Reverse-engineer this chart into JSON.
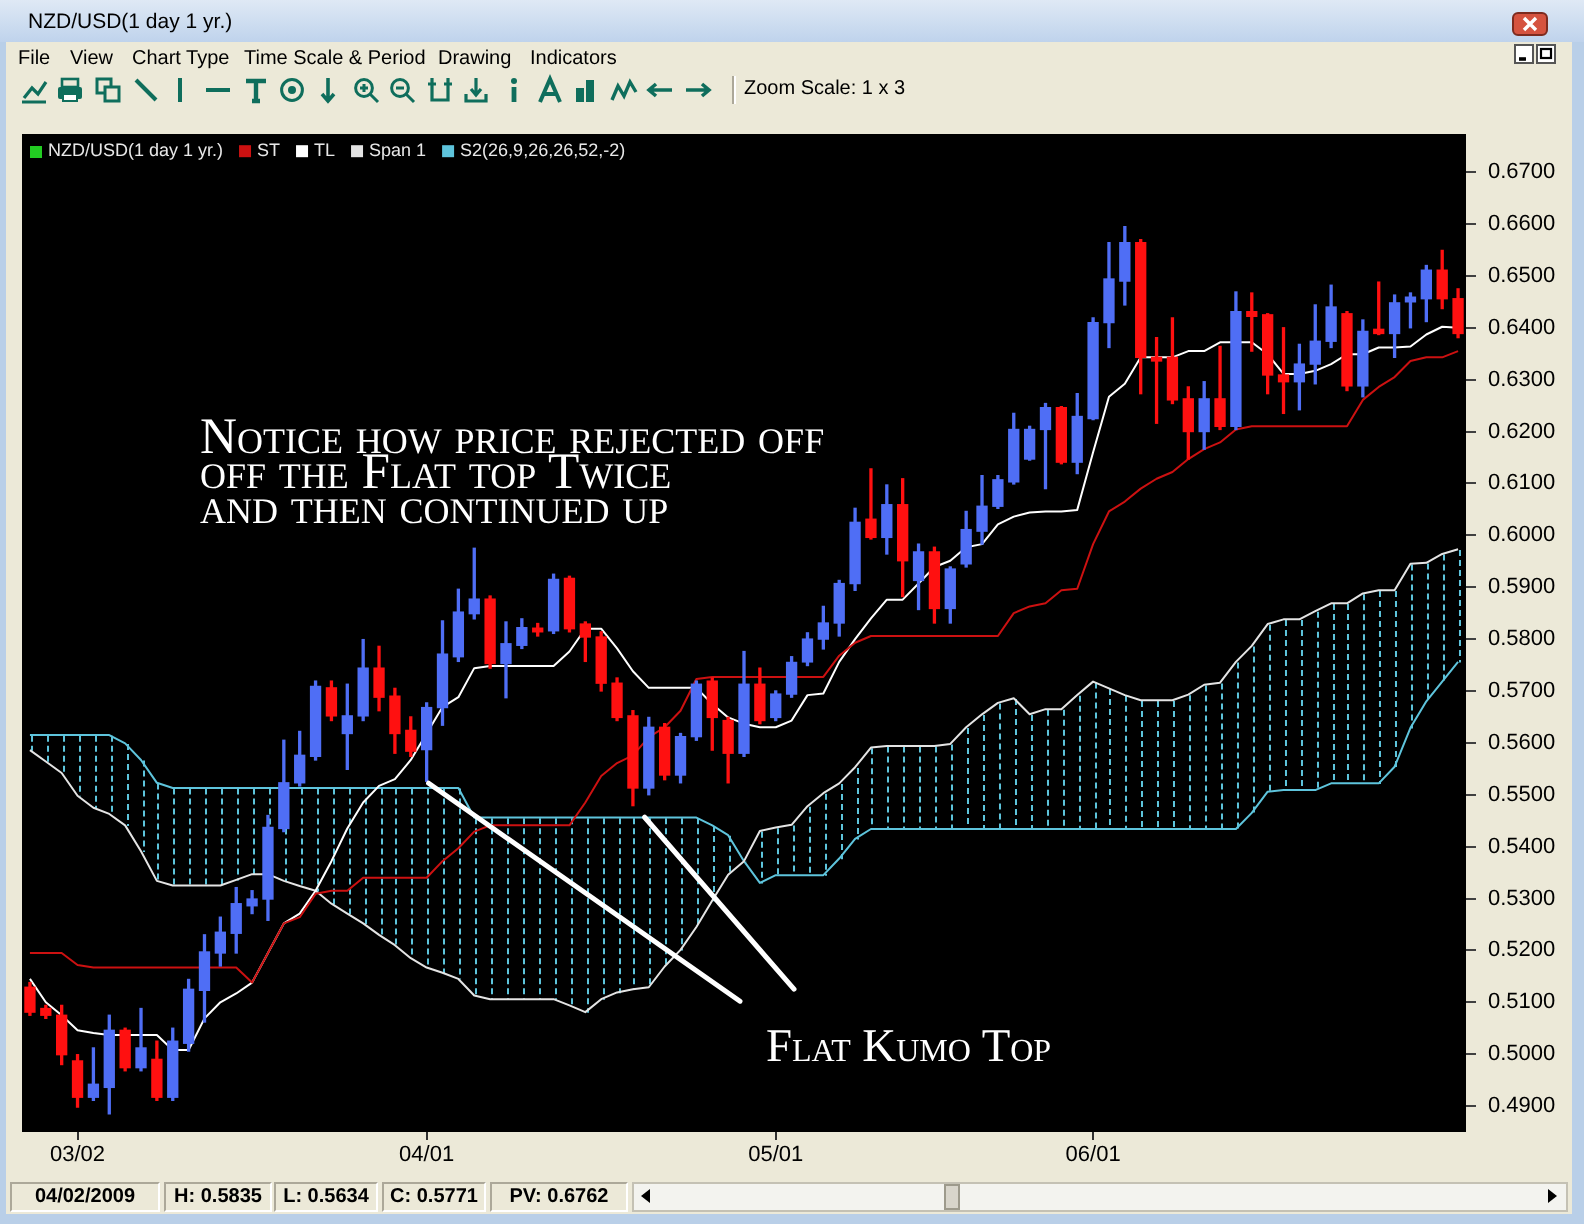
{
  "chart_data": {
    "type": "candlestick",
    "title": "NZD/USD(1 day 1 yr.)",
    "categories": [
      null,
      null,
      null,
      "03/02",
      null,
      null,
      null,
      null,
      null,
      null,
      null,
      null,
      null,
      null,
      null,
      null,
      null,
      null,
      null,
      null,
      null,
      null,
      null,
      null,
      null,
      "04/01",
      null,
      null,
      null,
      null,
      null,
      null,
      null,
      null,
      null,
      null,
      null,
      null,
      null,
      null,
      null,
      null,
      null,
      null,
      null,
      null,
      null,
      "05/01",
      null,
      null,
      null,
      null,
      null,
      null,
      null,
      null,
      null,
      null,
      null,
      null,
      null,
      null,
      null,
      null,
      null,
      null,
      null,
      "06/01",
      null,
      null,
      null,
      null,
      null,
      null,
      null,
      null,
      null,
      null,
      null,
      null,
      null,
      null,
      null,
      null,
      null,
      null,
      null,
      null,
      null,
      null,
      null
    ],
    "series": [
      {
        "colors": [
          "#ff1010",
          "#ff1010",
          "#ff1010",
          "#ff1010",
          "#4f6ef5",
          "#4f6ef5",
          "#ff1010",
          "#4f6ef5",
          "#ff1010",
          "#4f6ef5",
          "#4f6ef5",
          "#4f6ef5",
          "#4f6ef5",
          "#4f6ef5",
          "#4f6ef5",
          "#4f6ef5",
          "#4f6ef5",
          "#4f6ef5",
          "#4f6ef5",
          "#ff1010",
          "#4f6ef5",
          "#4f6ef5",
          "#ff1010",
          "#ff1010",
          "#ff1010",
          "#4f6ef5",
          "#4f6ef5",
          "#4f6ef5",
          "#4f6ef5",
          "#ff1010",
          "#4f6ef5",
          "#4f6ef5",
          "#ff1010",
          "#4f6ef5",
          "#ff1010",
          "#ff1010",
          "#ff1010",
          "#ff1010",
          "#ff1010",
          "#4f6ef5",
          "#ff1010",
          "#4f6ef5",
          "#4f6ef5",
          "#ff1010",
          "#ff1010",
          "#4f6ef5",
          "#ff1010",
          "#4f6ef5",
          "#4f6ef5",
          "#4f6ef5",
          "#4f6ef5",
          "#4f6ef5",
          "#4f6ef5",
          "#ff1010",
          "#4f6ef5",
          "#ff1010",
          "#4f6ef5",
          "#ff1010",
          "#4f6ef5",
          "#4f6ef5",
          "#4f6ef5",
          "#4f6ef5",
          "#4f6ef5",
          "#4f6ef5",
          "#4f6ef5",
          "#ff1010",
          "#4f6ef5",
          "#4f6ef5",
          "#4f6ef5",
          "#4f6ef5",
          "#ff1010",
          "#ff1010",
          "#ff1010",
          "#ff1010",
          "#4f6ef5",
          "#ff1010",
          "#4f6ef5",
          "#ff1010",
          "#ff1010",
          "#ff1010",
          "#4f6ef5",
          "#4f6ef5",
          "#4f6ef5",
          "#ff1010",
          "#4f6ef5",
          "#ff1010",
          "#4f6ef5",
          "#4f6ef5",
          "#4f6ef5",
          "#ff1010",
          "#ff1010"
        ],
        "ohlc": [
          [
            0.5129,
            0.5138,
            0.5075,
            0.5081
          ],
          [
            0.5088,
            0.5094,
            0.5069,
            0.5075
          ],
          [
            0.5075,
            0.5094,
            0.498,
            0.4999
          ],
          [
            0.4987,
            0.4999,
            0.4898,
            0.4917
          ],
          [
            0.4917,
            0.5012,
            0.4911,
            0.4942
          ],
          [
            0.4936,
            0.5075,
            0.4885,
            0.5046
          ],
          [
            0.5046,
            0.505,
            0.4968,
            0.4974
          ],
          [
            0.4974,
            0.5088,
            0.4968,
            0.5012
          ],
          [
            0.499,
            0.5025,
            0.4911,
            0.4917
          ],
          [
            0.4917,
            0.505,
            0.4911,
            0.5025
          ],
          [
            0.5021,
            0.5144,
            0.5006,
            0.5125
          ],
          [
            0.5123,
            0.523,
            0.5062,
            0.5197
          ],
          [
            0.5195,
            0.5264,
            0.517,
            0.5235
          ],
          [
            0.5233,
            0.5321,
            0.5195,
            0.529
          ],
          [
            0.5286,
            0.5315,
            0.5271,
            0.5299
          ],
          [
            0.5299,
            0.546,
            0.5258,
            0.5437
          ],
          [
            0.5435,
            0.5605,
            0.5429,
            0.5523
          ],
          [
            0.5523,
            0.5622,
            0.5517,
            0.5576
          ],
          [
            0.5574,
            0.5719,
            0.5567,
            0.5709
          ],
          [
            0.5706,
            0.5719,
            0.5643,
            0.5652
          ],
          [
            0.5618,
            0.5713,
            0.5549,
            0.5652
          ],
          [
            0.5652,
            0.5799,
            0.5643,
            0.5744
          ],
          [
            0.5744,
            0.5786,
            0.5662,
            0.5688
          ],
          [
            0.569,
            0.5705,
            0.558,
            0.5618
          ],
          [
            0.5624,
            0.565,
            0.5574,
            0.5584
          ],
          [
            0.5587,
            0.5677,
            0.5526,
            0.5668
          ],
          [
            0.5668,
            0.5835,
            0.5634,
            0.5771
          ],
          [
            0.5766,
            0.5896,
            0.5757,
            0.5852
          ],
          [
            0.5849,
            0.5975,
            0.5839,
            0.5877
          ],
          [
            0.5877,
            0.5883,
            0.5744,
            0.5753
          ],
          [
            0.5753,
            0.5833,
            0.5687,
            0.5791
          ],
          [
            0.5788,
            0.5839,
            0.5782,
            0.5822
          ],
          [
            0.5821,
            0.583,
            0.5806,
            0.5814
          ],
          [
            0.5816,
            0.5925,
            0.5811,
            0.5915
          ],
          [
            0.5917,
            0.5921,
            0.5814,
            0.582
          ],
          [
            0.5829,
            0.5833,
            0.5757,
            0.5804
          ],
          [
            0.5804,
            0.5814,
            0.57,
            0.5715
          ],
          [
            0.5715,
            0.5725,
            0.5643,
            0.5649
          ],
          [
            0.5652,
            0.5662,
            0.5479,
            0.5513
          ],
          [
            0.5513,
            0.5649,
            0.55,
            0.563
          ],
          [
            0.563,
            0.5637,
            0.5529,
            0.5538
          ],
          [
            0.5538,
            0.5618,
            0.5523,
            0.5612
          ],
          [
            0.5612,
            0.5719,
            0.5605,
            0.5713
          ],
          [
            0.5719,
            0.5725,
            0.5586,
            0.5649
          ],
          [
            0.5643,
            0.5649,
            0.5523,
            0.558
          ],
          [
            0.558,
            0.5776,
            0.5574,
            0.5713
          ],
          [
            0.5713,
            0.5744,
            0.5637,
            0.5643
          ],
          [
            0.5649,
            0.57,
            0.5643,
            0.5694
          ],
          [
            0.5694,
            0.5766,
            0.5688,
            0.5755
          ],
          [
            0.5756,
            0.5812,
            0.5749,
            0.58
          ],
          [
            0.58,
            0.5863,
            0.5781,
            0.5831
          ],
          [
            0.5831,
            0.5913,
            0.5806,
            0.5907
          ],
          [
            0.5907,
            0.6052,
            0.5894,
            0.6025
          ],
          [
            0.6031,
            0.6128,
            0.5993,
            0.5996
          ],
          [
            0.5996,
            0.6097,
            0.5964,
            0.6059
          ],
          [
            0.6059,
            0.6109,
            0.5882,
            0.5951
          ],
          [
            0.5913,
            0.5983,
            0.5857,
            0.5968
          ],
          [
            0.5968,
            0.5977,
            0.5831,
            0.5859
          ],
          [
            0.5859,
            0.5939,
            0.5831,
            0.5935
          ],
          [
            0.5945,
            0.6046,
            0.5939,
            0.6011
          ],
          [
            0.6008,
            0.6115,
            0.5983,
            0.6056
          ],
          [
            0.6056,
            0.6115,
            0.6052,
            0.6107
          ],
          [
            0.6103,
            0.6235,
            0.6099,
            0.6204
          ],
          [
            0.6147,
            0.621,
            0.6145,
            0.6204
          ],
          [
            0.6204,
            0.6254,
            0.609,
            0.6246
          ],
          [
            0.6246,
            0.6248,
            0.6138,
            0.6141
          ],
          [
            0.6141,
            0.6273,
            0.6119,
            0.6229
          ],
          [
            0.6225,
            0.6419,
            0.6223,
            0.641
          ],
          [
            0.641,
            0.6564,
            0.6362,
            0.6494
          ],
          [
            0.649,
            0.6595,
            0.6444,
            0.6564
          ],
          [
            0.6564,
            0.657,
            0.6273,
            0.6343
          ],
          [
            0.6343,
            0.6381,
            0.6216,
            0.6336
          ],
          [
            0.6343,
            0.6419,
            0.6254,
            0.6261
          ],
          [
            0.6263,
            0.6286,
            0.6147,
            0.62
          ],
          [
            0.62,
            0.6296,
            0.6166,
            0.6263
          ],
          [
            0.6263,
            0.6364,
            0.6204,
            0.621
          ],
          [
            0.621,
            0.6469,
            0.6204,
            0.6431
          ],
          [
            0.6431,
            0.6467,
            0.6355,
            0.6422
          ],
          [
            0.6425,
            0.6427,
            0.6273,
            0.6309
          ],
          [
            0.6309,
            0.64,
            0.6235,
            0.6296
          ],
          [
            0.6296,
            0.6368,
            0.6242,
            0.633
          ],
          [
            0.633,
            0.6444,
            0.6292,
            0.6374
          ],
          [
            0.6374,
            0.6482,
            0.6362,
            0.644
          ],
          [
            0.6427,
            0.6431,
            0.6279,
            0.6288
          ],
          [
            0.6288,
            0.6415,
            0.6267,
            0.6393
          ],
          [
            0.6397,
            0.6488,
            0.6387,
            0.6389
          ],
          [
            0.6389,
            0.6463,
            0.6343,
            0.6448
          ],
          [
            0.645,
            0.6467,
            0.64,
            0.6459
          ],
          [
            0.6456,
            0.652,
            0.6412,
            0.6511
          ],
          [
            0.6511,
            0.6549,
            0.6437,
            0.6456
          ],
          [
            0.6456,
            0.6475,
            0.6381,
            0.6389
          ]
        ]
      },
      {
        "type": "line",
        "name": "ST",
        "color": "#cc1111",
        "values": [
          0.5195,
          0.5195,
          0.5195,
          0.5172,
          0.5167,
          0.5167,
          0.5167,
          0.5167,
          0.5167,
          0.5167,
          0.5167,
          0.5167,
          0.5167,
          0.5167,
          0.5138,
          0.5195,
          0.5252,
          0.5264,
          0.5309,
          0.5315,
          0.5315,
          0.534,
          0.534,
          0.534,
          0.534,
          0.534,
          0.5372,
          0.5397,
          0.5429,
          0.5441,
          0.5441,
          0.5441,
          0.5441,
          0.5441,
          0.5441,
          0.5485,
          0.5536,
          0.5561,
          0.5576,
          0.5611,
          0.563,
          0.5662,
          0.5723,
          0.5727,
          0.5727,
          0.5727,
          0.5727,
          0.5727,
          0.5727,
          0.5727,
          0.5727,
          0.5768,
          0.5793,
          0.5806,
          0.5806,
          0.5806,
          0.5806,
          0.5806,
          0.5806,
          0.5806,
          0.5806,
          0.5806,
          0.585,
          0.5863,
          0.5869,
          0.5894,
          0.5897,
          0.5983,
          0.6046,
          0.6065,
          0.609,
          0.6109,
          0.6122,
          0.6147,
          0.6166,
          0.6179,
          0.6204,
          0.621,
          0.621,
          0.621,
          0.621,
          0.621,
          0.621,
          0.621,
          0.6261,
          0.6286,
          0.6305,
          0.6336,
          0.6343,
          0.6343,
          0.6355
        ]
      },
      {
        "type": "line",
        "name": "TL",
        "color": "#ffffff",
        "values": [
          0.5145,
          0.51,
          0.5075,
          0.5046,
          0.5041,
          0.5037,
          0.5037,
          0.5037,
          0.5037,
          0.5008,
          0.5008,
          0.5069,
          0.51,
          0.5117,
          0.5138,
          0.5195,
          0.5252,
          0.5271,
          0.5315,
          0.5372,
          0.5435,
          0.5485,
          0.5517,
          0.553,
          0.5567,
          null,
          0.5669,
          0.5688,
          0.5744,
          0.5748,
          0.5748,
          0.5748,
          0.5748,
          0.5748,
          0.5776,
          0.582,
          0.582,
          0.5782,
          0.5738,
          0.5706,
          0.5706,
          0.5706,
          0.5706,
          0.5675,
          0.5649,
          0.5637,
          0.563,
          0.563,
          0.5643,
          0.5692,
          0.5695,
          0.5756,
          0.58,
          0.584,
          0.5876,
          0.5876,
          0.5907,
          0.5939,
          0.5951,
          0.5977,
          0.5983,
          0.6021,
          0.6036,
          0.6044,
          0.6046,
          0.6046,
          0.6049,
          0.616,
          0.6267,
          0.6292,
          0.6343,
          0.6343,
          0.6343,
          0.6355,
          0.6355,
          0.6372,
          0.6372,
          0.6372,
          0.6349,
          0.6311,
          0.6311,
          0.6317,
          0.633,
          0.6349,
          0.6349,
          0.6362,
          0.6362,
          0.6364,
          0.6387,
          0.6402,
          0.64
        ]
      },
      {
        "type": "line",
        "name": "Span 1",
        "color": "#e4e4e4",
        "values": [
          0.5586,
          0.5564,
          0.5542,
          0.5498,
          0.5475,
          0.5463,
          0.5441,
          0.5391,
          0.5334,
          0.5325,
          0.5325,
          0.5325,
          0.5325,
          0.5336,
          0.5347,
          0.5347,
          0.5334,
          0.5324,
          0.5315,
          0.529,
          0.5271,
          0.5252,
          0.523,
          0.521,
          0.5185,
          0.5167,
          0.5157,
          0.5145,
          0.5113,
          0.5106,
          0.5106,
          0.5106,
          0.5106,
          0.5106,
          0.5094,
          0.5081,
          0.5106,
          0.5119,
          0.5125,
          0.5129,
          0.5169,
          0.5201,
          0.5245,
          0.5296,
          0.5346,
          0.5372,
          0.543,
          0.5437,
          0.5442,
          0.5478,
          0.5503,
          0.5522,
          0.5553,
          0.5591,
          0.5594,
          0.5594,
          0.5594,
          0.5594,
          0.5598,
          0.563,
          0.5655,
          0.5677,
          0.5686,
          0.5655,
          0.5665,
          0.5665,
          0.5692,
          0.5718,
          0.5705,
          0.5692,
          0.5682,
          0.5682,
          0.5682,
          0.5693,
          0.5712,
          0.5716,
          0.5756,
          0.5787,
          0.5829,
          0.5838,
          0.5838,
          0.5854,
          0.5869,
          0.5869,
          0.5888,
          0.5894,
          0.5894,
          0.5945,
          0.5947,
          0.5964,
          0.5973
        ]
      },
      {
        "type": "line",
        "name": "S2(26,9,26,26,52,-2)",
        "color": "#5ec4dc",
        "values": [
          0.5615,
          0.5615,
          0.5615,
          0.5615,
          0.5615,
          0.5615,
          0.5599,
          0.5567,
          0.5523,
          0.5513,
          0.5513,
          0.5513,
          0.5513,
          0.5513,
          0.5513,
          0.5513,
          0.5513,
          0.5513,
          0.5513,
          0.5513,
          0.5513,
          0.5513,
          0.5513,
          0.5513,
          0.5513,
          0.5513,
          0.5513,
          0.5513,
          0.5456,
          0.5456,
          0.5456,
          0.5456,
          0.5456,
          0.5456,
          0.5456,
          0.5456,
          0.5456,
          0.5456,
          0.5456,
          0.5456,
          0.5456,
          0.5456,
          0.5456,
          0.5441,
          0.5422,
          0.5372,
          0.533,
          0.5345,
          0.5345,
          0.5345,
          0.5345,
          0.5377,
          0.5415,
          0.5434,
          0.5434,
          0.5434,
          0.5434,
          0.5434,
          0.5434,
          0.5434,
          0.5434,
          0.5434,
          0.5434,
          0.5434,
          0.5434,
          0.5434,
          0.5434,
          0.5434,
          0.5434,
          0.5434,
          0.5434,
          0.5434,
          0.5434,
          0.5434,
          0.5434,
          0.5434,
          0.5434,
          0.5465,
          0.5506,
          0.5509,
          0.5509,
          0.5509,
          0.5522,
          0.5522,
          0.5522,
          0.5522,
          0.5554,
          0.5629,
          0.568,
          0.5718,
          0.5756
        ]
      }
    ],
    "ylim": [
      0.485,
      0.6775
    ],
    "yticks": [
      {
        "value": 0.49,
        "label": "0.4900"
      },
      {
        "value": 0.5,
        "label": "0.5000"
      },
      {
        "value": 0.51,
        "label": "0.5100"
      },
      {
        "value": 0.52,
        "label": "0.5200"
      },
      {
        "value": 0.53,
        "label": "0.5300"
      },
      {
        "value": 0.54,
        "label": "0.5400"
      },
      {
        "value": 0.55,
        "label": "0.5500"
      },
      {
        "value": 0.56,
        "label": "0.5600"
      },
      {
        "value": 0.57,
        "label": "0.5700"
      },
      {
        "value": 0.58,
        "label": "0.5800"
      },
      {
        "value": 0.59,
        "label": "0.5900"
      },
      {
        "value": 0.6,
        "label": "0.6000"
      },
      {
        "value": 0.61,
        "label": "0.6100"
      },
      {
        "value": 0.62,
        "label": "0.6200"
      },
      {
        "value": 0.63,
        "label": "0.6300"
      },
      {
        "value": 0.64,
        "label": "0.6400"
      },
      {
        "value": 0.65,
        "label": "0.6500"
      },
      {
        "value": 0.66,
        "label": "0.6600"
      },
      {
        "value": 0.67,
        "label": "0.6700"
      }
    ],
    "legend": "top left",
    "marker": "none",
    "annotations": [
      "Notice how price rejected off\noff the Flat top Twice\nand then continued up",
      {
        "text": "Flat Kumo Top",
        "x": "04/01",
        "y": 0.5526
      },
      "File",
      "View",
      "Chart Type",
      "Time Scale & Period",
      "Drawing",
      "Indicators",
      "Zoom Scale: 1 x 3",
      "04/02/2009",
      "H: 0.5835",
      "L: 0.5634",
      "C: 0.5771",
      "PV: 0.6762",
      "NZD/USD(1 day 1 yr.)"
    ]
  }
}
